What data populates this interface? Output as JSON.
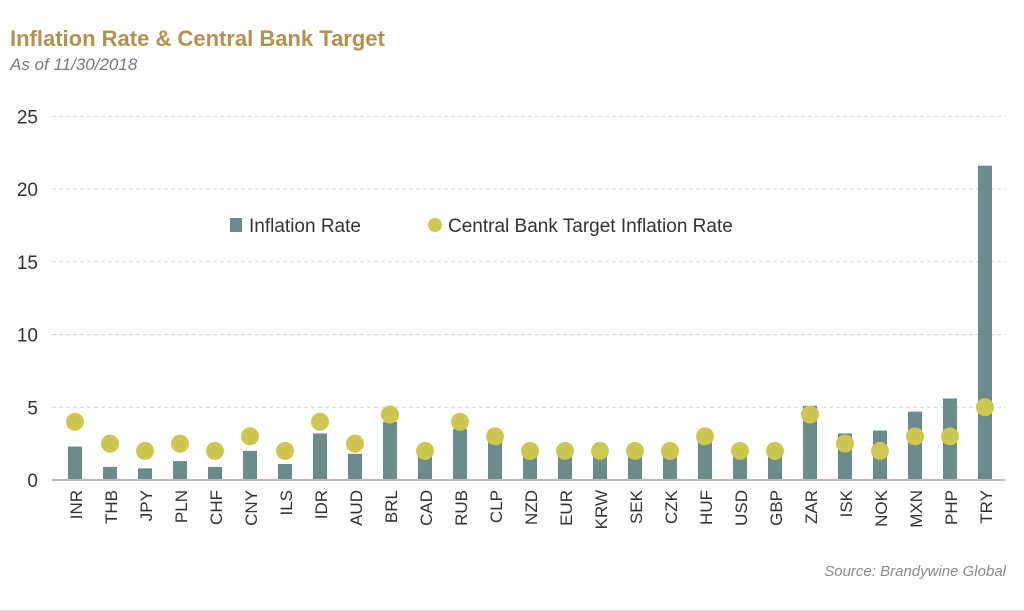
{
  "chart_data": {
    "type": "bar",
    "title": "Inflation Rate & Central Bank Target",
    "subtitle": "As of 11/30/2018",
    "source": "Source: Brandywine Global",
    "categories": [
      "INR",
      "THB",
      "JPY",
      "PLN",
      "CHF",
      "CNY",
      "ILS",
      "IDR",
      "AUD",
      "BRL",
      "CAD",
      "RUB",
      "CLP",
      "NZD",
      "EUR",
      "KRW",
      "SEK",
      "CZK",
      "HUF",
      "USD",
      "GBP",
      "ZAR",
      "ISK",
      "NOK",
      "MXN",
      "PHP",
      "TRY"
    ],
    "series": [
      {
        "name": "Inflation Rate",
        "kind": "bar",
        "color": "#6b8b8c",
        "values": [
          2.3,
          0.9,
          0.8,
          1.3,
          0.9,
          2.0,
          1.1,
          3.2,
          1.8,
          4.0,
          1.7,
          3.5,
          2.8,
          1.9,
          1.9,
          1.9,
          1.9,
          1.9,
          3.0,
          1.9,
          1.9,
          5.1,
          3.2,
          3.4,
          4.7,
          5.6,
          21.6
        ]
      },
      {
        "name": "Central Bank Target Inflation Rate",
        "kind": "dot",
        "color": "#cdc752",
        "values": [
          4,
          2.5,
          2,
          2.5,
          2,
          3,
          2,
          4,
          2.5,
          4.5,
          2,
          4,
          3,
          2,
          2,
          2,
          2,
          2,
          3,
          2,
          2,
          4.5,
          2.5,
          2,
          3,
          3,
          5
        ]
      }
    ],
    "ylim": [
      0,
      25
    ],
    "yticks": [
      0,
      5,
      10,
      15,
      20,
      25
    ],
    "grid": true,
    "legend_placement": "top-center",
    "title_color": "#b4914e"
  }
}
